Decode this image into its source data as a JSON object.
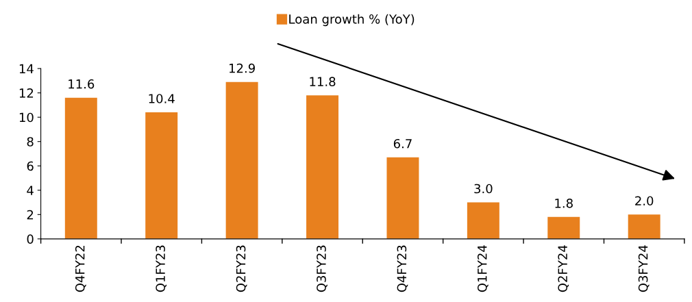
{
  "chart_data": {
    "type": "bar",
    "categories": [
      "Q4FY22",
      "Q1FY23",
      "Q2FY23",
      "Q3FY23",
      "Q4FY23",
      "Q1FY24",
      "Q2FY24",
      "Q3FY24"
    ],
    "series": [
      {
        "name": "Loan growth % (YoY)",
        "color": "#e8801e",
        "values": [
          11.6,
          10.4,
          12.9,
          11.8,
          6.7,
          3.0,
          1.8,
          2.0
        ],
        "value_labels": [
          "11.6",
          "10.4",
          "12.9",
          "11.8",
          "6.7",
          "3.0",
          "1.8",
          "2.0"
        ]
      }
    ],
    "ylim": [
      0,
      14
    ],
    "yticks": [
      0,
      2,
      4,
      6,
      8,
      10,
      12,
      14
    ],
    "grid": false,
    "legend": "top"
  }
}
